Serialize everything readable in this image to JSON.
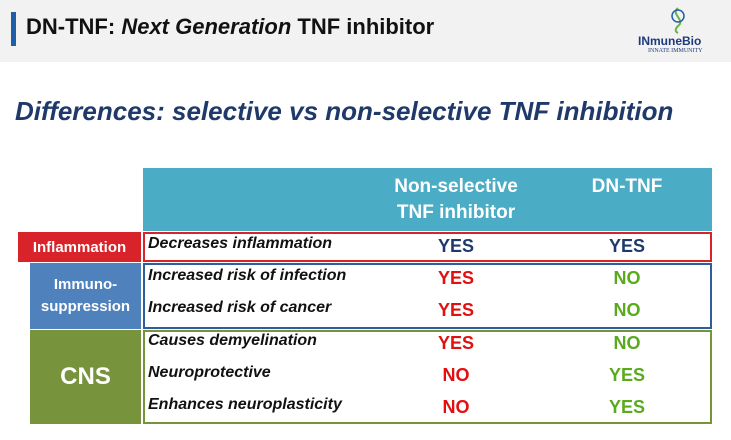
{
  "header": {
    "title_lead": "DN-TNF:",
    "title_emphasis": "Next Generation",
    "title_tail": "TNF inhibitor",
    "logo_name": "INmuneBio",
    "logo_tagline": "INNATE IMMUNITY"
  },
  "subtitle": "Differences: selective vs non-selective TNF inhibition",
  "table": {
    "columns": [
      "Non-selective TNF inhibitor",
      "DN-TNF"
    ],
    "groups": [
      "Inflammation",
      "Immuno-suppression",
      "CNS"
    ],
    "rows": [
      [
        "Decreases inflammation",
        "YES",
        "YES"
      ],
      [
        "Increased risk of infection",
        "YES",
        "NO"
      ],
      [
        "Increased risk of cancer",
        "YES",
        "NO"
      ],
      [
        "Causes demyelination",
        "YES",
        "NO"
      ],
      [
        "Neuroprotective",
        "NO",
        "YES"
      ],
      [
        "Enhances neuroplasticity",
        "NO",
        "YES"
      ]
    ]
  }
}
